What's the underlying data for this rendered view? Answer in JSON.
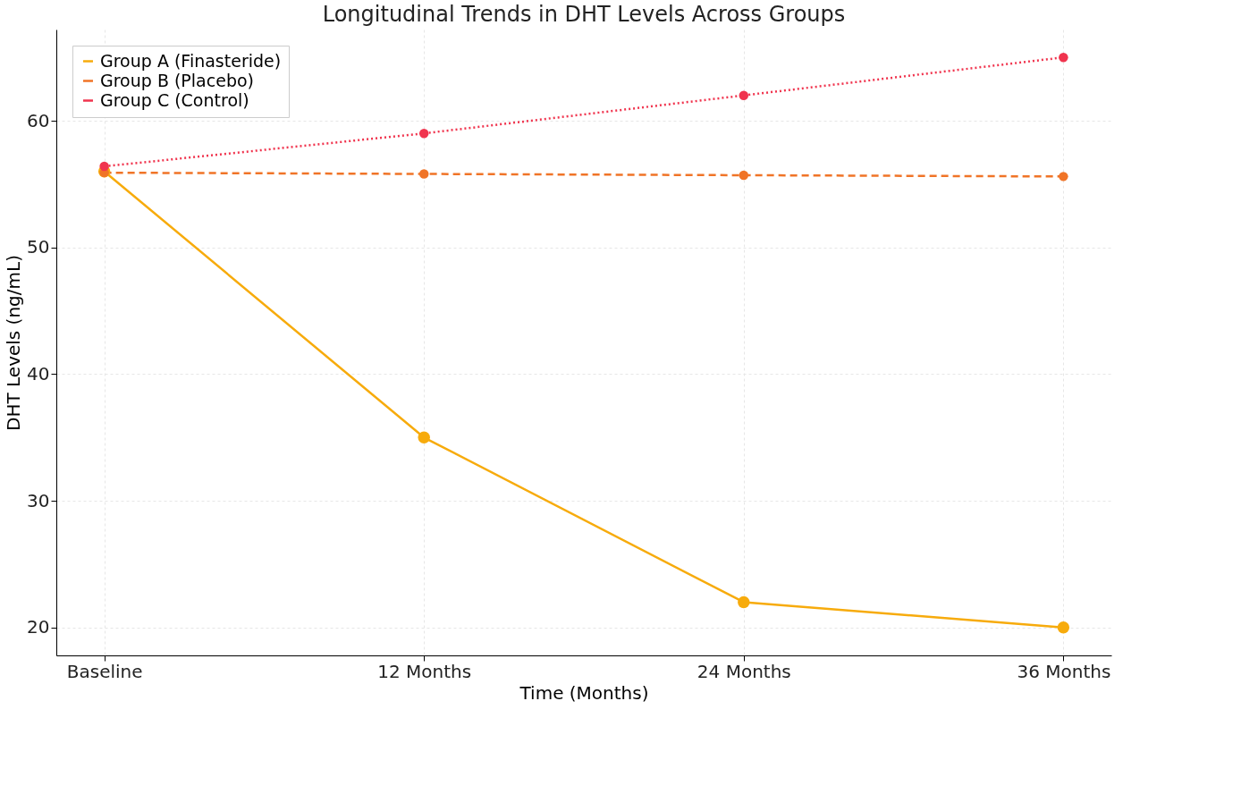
{
  "chart_data": {
    "type": "line",
    "title": "Longitudinal Trends in DHT Levels Across Groups",
    "xlabel": "Time (Months)",
    "ylabel": "DHT Levels (ng/mL)",
    "categories": [
      "Baseline",
      "12 Months",
      "24 Months",
      "36 Months"
    ],
    "series": [
      {
        "name": "Group A (Finasteride)",
        "color": "#f7ab0c",
        "values": [
          56.0,
          35.0,
          22.0,
          20.0
        ],
        "line_style": "solid",
        "marker": "circle"
      },
      {
        "name": "Group B (Placebo)",
        "color": "#f07427",
        "values": [
          55.9,
          55.8,
          55.7,
          55.6
        ],
        "line_style": "dashed",
        "marker": "circle"
      },
      {
        "name": "Group C (Control)",
        "color": "#f0344e",
        "values": [
          56.4,
          59.0,
          62.0,
          65.0
        ],
        "line_style": "dotted",
        "marker": "circle"
      }
    ],
    "ylim": [
      17.8,
      67.2
    ],
    "yticks": [
      20,
      30,
      40,
      50,
      60
    ],
    "grid": true,
    "legend": "top left"
  }
}
